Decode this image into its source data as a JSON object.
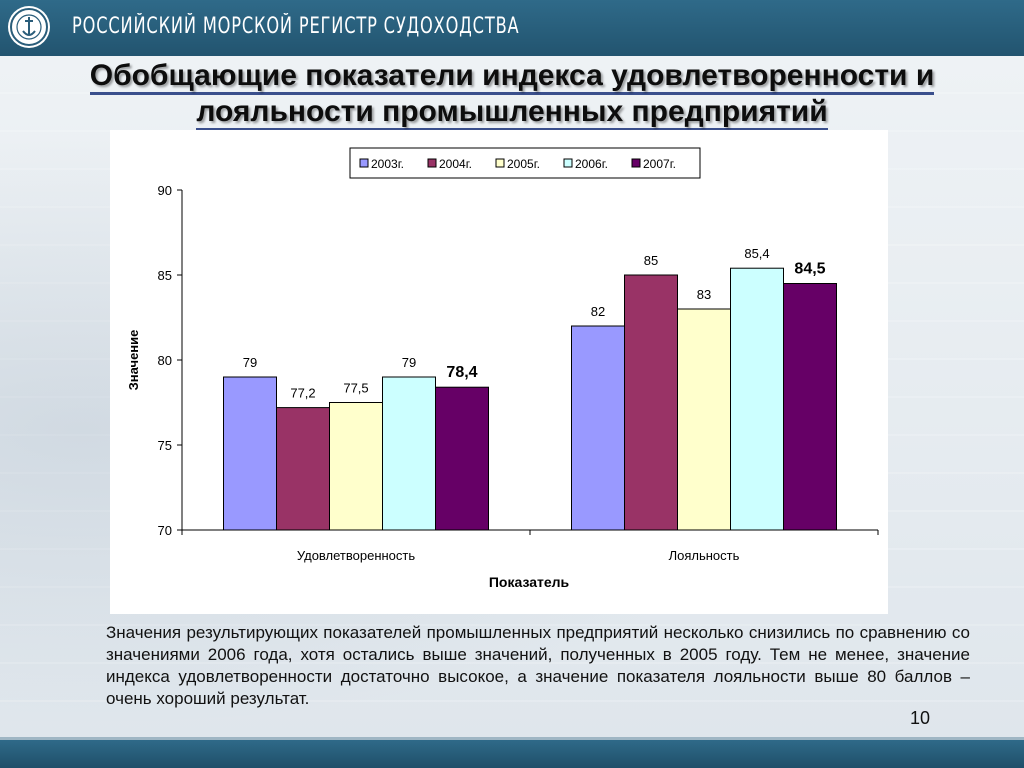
{
  "header": {
    "org_name": "РОССИЙСКИЙ МОРСКОЙ РЕГИСТР СУДОХОДСТВА",
    "logo_icon": "ship-register-emblem-icon"
  },
  "slide": {
    "title_line1": "Обобщающие показатели индекса удовлетворенности и",
    "title_line2": "лояльности промышленных предприятий"
  },
  "chart_data": {
    "type": "bar",
    "categories": [
      "Удовлетворенность",
      "Лояльность"
    ],
    "series": [
      {
        "name": "2003г.",
        "color": "#9999ff",
        "values": [
          79,
          82
        ],
        "labels": [
          "79",
          "82"
        ],
        "bold": false
      },
      {
        "name": "2004г.",
        "color": "#993366",
        "values": [
          77.2,
          85
        ],
        "labels": [
          "77,2",
          "85"
        ],
        "bold": false
      },
      {
        "name": "2005г.",
        "color": "#ffffcc",
        "values": [
          77.5,
          83
        ],
        "labels": [
          "77,5",
          "83"
        ],
        "bold": false
      },
      {
        "name": "2006г.",
        "color": "#ccffff",
        "values": [
          79,
          85.4
        ],
        "labels": [
          "79",
          "85,4"
        ],
        "bold": false
      },
      {
        "name": "2007г.",
        "color": "#660066",
        "values": [
          78.4,
          84.5
        ],
        "labels": [
          "78,4",
          "84,5"
        ],
        "bold": true
      }
    ],
    "xlabel": "Показатель",
    "ylabel": "Значение",
    "ylim": [
      70,
      90
    ],
    "yticks": [
      70,
      75,
      80,
      85,
      90
    ],
    "legend_position": "top",
    "grid": false
  },
  "summary_text": "Значения результирующих показателей промышленных предприятий несколько снизились по сравнению со значениями 2006 года, хотя остались выше значений, полученных в 2005 году. Тем не менее, значение индекса удовлетворенности достаточно высокое, а значение показателя лояльности выше 80 баллов – очень хороший результат.",
  "page_number": "10"
}
